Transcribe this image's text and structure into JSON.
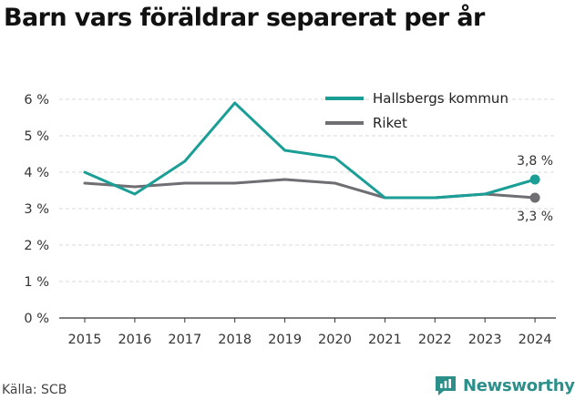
{
  "header": {
    "title": "Barn vars föräldrar separerat per år"
  },
  "footer": {
    "source": "Källa: SCB",
    "brand": "Newsworthy"
  },
  "colors": {
    "series1": "#1a9e96",
    "series2": "#6f6e73",
    "grid": "#d9d9d9",
    "brand": "#2c8f8a"
  },
  "chart_data": {
    "type": "line",
    "title": "Barn vars föräldrar separerat per år",
    "xlabel": "",
    "ylabel": "",
    "x": [
      "2015",
      "2016",
      "2017",
      "2018",
      "2019",
      "2020",
      "2021",
      "2022",
      "2023",
      "2024"
    ],
    "ylim": [
      0,
      6
    ],
    "yticks": [
      "0 %",
      "1 %",
      "2 %",
      "3 %",
      "4 %",
      "5 %",
      "6 %"
    ],
    "grid": "horizontal",
    "legend": "top-right",
    "series": [
      {
        "name": "Hallsbergs kommun",
        "color": "#1a9e96",
        "values": [
          4.0,
          3.4,
          4.3,
          5.9,
          4.6,
          4.4,
          3.3,
          3.3,
          3.4,
          3.8
        ],
        "end_label": "3,8 %"
      },
      {
        "name": "Riket",
        "color": "#6f6e73",
        "values": [
          3.7,
          3.6,
          3.7,
          3.7,
          3.8,
          3.7,
          3.3,
          3.3,
          3.4,
          3.3
        ],
        "end_label": "3,3 %"
      }
    ]
  }
}
